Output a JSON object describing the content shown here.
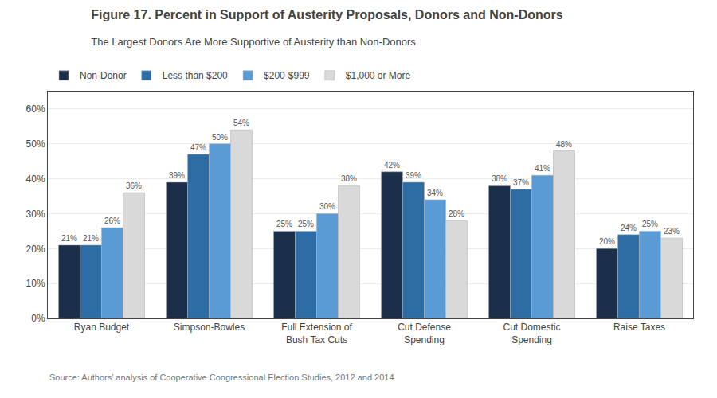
{
  "chart_data": {
    "type": "bar",
    "title": "Figure 17. Percent in Support of Austerity Proposals, Donors and Non-Donors",
    "subtitle": "The Largest Donors Are More Supportive of Austerity than Non-Donors",
    "source": "Source: Authors’ analysis of Cooperative Congressional Election Studies, 2012 and 2014",
    "categories": [
      "Ryan Budget",
      "Simpson-Bowles",
      "Full Extension of\nBush Tax Cuts",
      "Cut Defense\nSpending",
      "Cut Domestic\nSpending",
      "Raise Taxes"
    ],
    "series": [
      {
        "name": "Non-Donor",
        "color": "#1c2f4a",
        "values": [
          21,
          39,
          25,
          42,
          38,
          20
        ],
        "value_labels": [
          "21%",
          "39%",
          "25%",
          "42%",
          "38%",
          "20%"
        ]
      },
      {
        "name": "Less than $200",
        "color": "#2e6da4",
        "values": [
          21,
          47,
          25,
          39,
          37,
          24
        ],
        "value_labels": [
          "21%",
          "47%",
          "25%",
          "39%",
          "37%",
          "24%"
        ]
      },
      {
        "name": "$200-$999",
        "color": "#5b9bd5",
        "values": [
          26,
          50,
          30,
          34,
          41,
          25
        ],
        "value_labels": [
          "26%",
          "50%",
          "30%",
          "34%",
          "41%",
          "25%"
        ]
      },
      {
        "name": "$1,000 or More",
        "color": "#d9d9d9",
        "values": [
          36,
          54,
          38,
          28,
          48,
          23
        ],
        "value_labels": [
          "36%",
          "54%",
          "38%",
          "28%",
          "48%",
          "23%"
        ]
      }
    ],
    "ylim": [
      0,
      65
    ],
    "yticks": [
      {
        "value": 0,
        "label": "0%"
      },
      {
        "value": 10,
        "label": "10%"
      },
      {
        "value": 20,
        "label": "20%"
      },
      {
        "value": 30,
        "label": "30%"
      },
      {
        "value": 40,
        "label": "40%"
      },
      {
        "value": 50,
        "label": "50%"
      },
      {
        "value": 60,
        "label": "60%"
      }
    ],
    "grid": true,
    "legend": "top",
    "data_labels": true
  }
}
